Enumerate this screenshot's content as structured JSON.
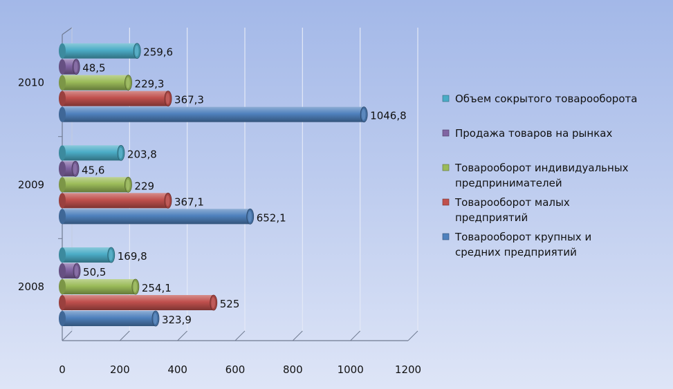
{
  "chart_data": {
    "type": "bar",
    "orientation": "horizontal",
    "title": "",
    "xlabel": "",
    "ylabel": "",
    "xlim": [
      0,
      1200
    ],
    "xticks": [
      "0",
      "200",
      "400",
      "600",
      "800",
      "1000",
      "1200"
    ],
    "categories": [
      "2008",
      "2009",
      "2010"
    ],
    "grid": true,
    "legend_position": "right",
    "series": [
      {
        "name": "Товарооборот крупных и средних предприятий",
        "values": [
          323.9,
          652.1,
          1046.8
        ],
        "labels": [
          "323,9",
          "652,1",
          "1046,8"
        ],
        "color": "#4f81bd"
      },
      {
        "name": "Товарооборот малых предприятий",
        "values": [
          525,
          367.1,
          367.3
        ],
        "labels": [
          "525",
          "367,1",
          "367,3"
        ],
        "color": "#c0504d"
      },
      {
        "name": "Товарооборот индивидуальных предпринимателей",
        "values": [
          254.1,
          229,
          229.3
        ],
        "labels": [
          "254,1",
          "229",
          "229,3"
        ],
        "color": "#9bbb59"
      },
      {
        "name": "Продажа товаров на рынках",
        "values": [
          50.5,
          45.6,
          48.5
        ],
        "labels": [
          "50,5",
          "45,6",
          "48,5"
        ],
        "color": "#8064a2"
      },
      {
        "name": "Объем сокрытого товарооборота",
        "values": [
          169.8,
          203.8,
          259.6
        ],
        "labels": [
          "169,8",
          "203,8",
          "259,6"
        ],
        "color": "#4bacc6"
      }
    ],
    "legend_lines": [
      [
        "Объем сокрытого товарооборота"
      ],
      [
        "Продажа товаров на рынках"
      ],
      [
        "Товарооборот индивидуальных",
        "предпринимателей"
      ],
      [
        "Товарооборот малых",
        "предприятий"
      ],
      [
        "Товарооборот крупных и",
        "средних предприятий"
      ]
    ]
  }
}
